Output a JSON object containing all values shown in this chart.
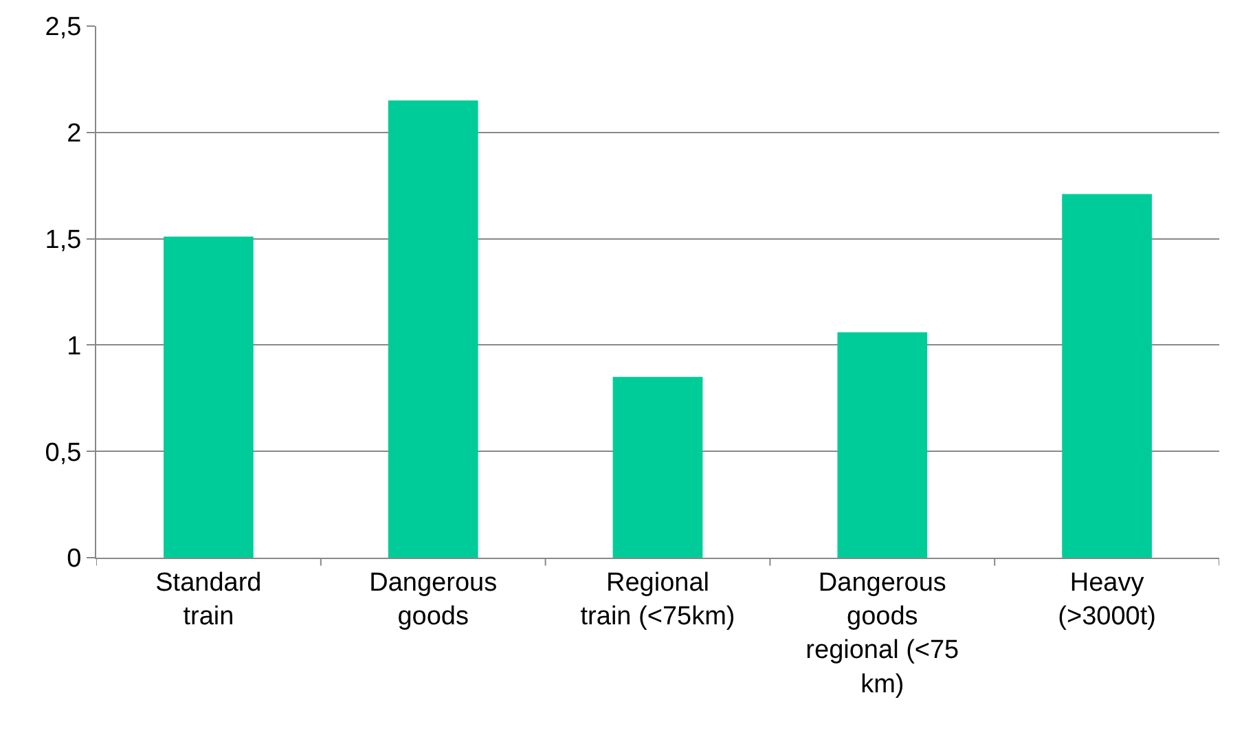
{
  "chart_data": {
    "type": "bar",
    "categories": [
      "Standard train",
      "Dangerous goods",
      "Regional train (<75km)",
      "Dangerous goods regional (<75 km)",
      "Heavy (>3000t)"
    ],
    "values": [
      1.51,
      2.15,
      0.85,
      1.06,
      1.71
    ],
    "color": "#00cc99",
    "ylim": [
      0,
      2.5
    ],
    "yticks": [
      0,
      {
        "value": 0.5,
        "label": "0,5"
      },
      1,
      {
        "value": 1.5,
        "label": "1,5"
      },
      2,
      {
        "value": 2.5,
        "label": "2,5"
      }
    ],
    "grid": "y"
  }
}
